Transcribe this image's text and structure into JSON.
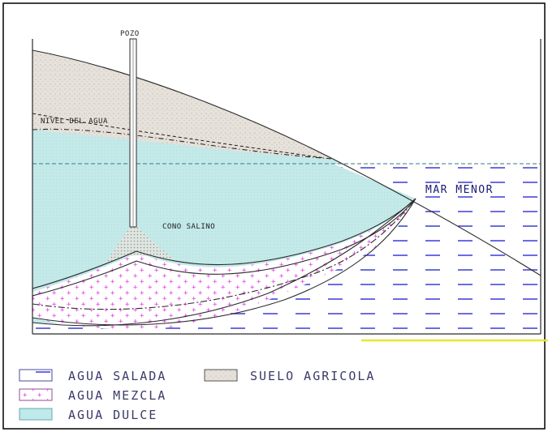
{
  "diagram": {
    "labels": {
      "well": "POZO",
      "water_level": "NIVEL DEL AGUA",
      "saline_cone": "CONO SALINO",
      "lagoon": "MAR MENOR"
    },
    "legend": [
      {
        "label": "AGUA SALADA",
        "pattern": "salt-water"
      },
      {
        "label": "SUELO AGRICOLA",
        "pattern": "agricultural-soil"
      },
      {
        "label": "AGUA MEZCLA",
        "pattern": "mixed-water"
      },
      {
        "label": "AGUA DULCE",
        "pattern": "fresh-water"
      }
    ],
    "colors": {
      "salt_water": "#3b3bd6",
      "mixed_water": "#e040e0",
      "fresh_water": "#bfe9ea",
      "soil": "#e3ddd5",
      "outline": "#2a2a2a",
      "highlight_line": "#e8e830"
    }
  }
}
